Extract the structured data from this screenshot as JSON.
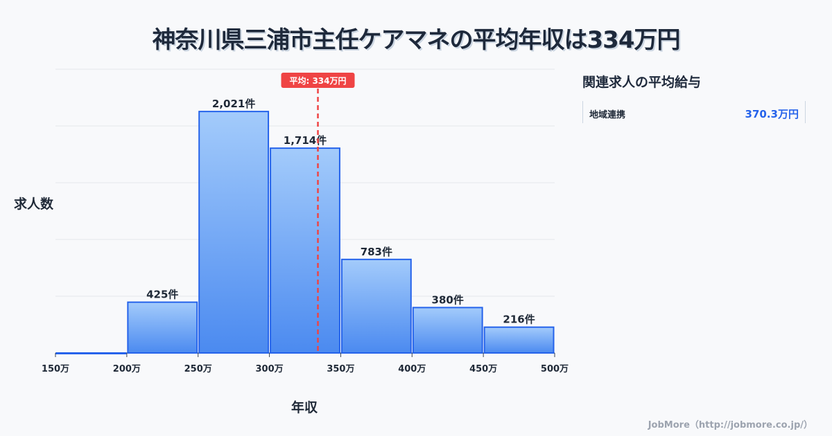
{
  "chart_data": {
    "type": "bar",
    "title": "神奈川県三浦市主任ケアマネの平均年収は334万円",
    "xlabel": "年収",
    "ylabel": "求人数",
    "x_ticks": [
      "150万",
      "200万",
      "250万",
      "300万",
      "350万",
      "400万",
      "450万",
      "500万"
    ],
    "bin_edges": [
      150,
      200,
      250,
      300,
      350,
      400,
      450,
      500
    ],
    "values": [
      0,
      425,
      2021,
      1714,
      783,
      380,
      216
    ],
    "value_labels": [
      "",
      "425件",
      "2,021件",
      "1,714件",
      "783件",
      "380件",
      "216件"
    ],
    "ylim": [
      0,
      2375
    ],
    "grid": true,
    "average": {
      "value": 334,
      "label": "平均: 334万円"
    }
  },
  "colors": {
    "bar_top": "#a3cbfb",
    "bar_bottom": "#4b8af0",
    "bar_stroke": "#2563eb",
    "avg_line": "#ef4444"
  },
  "side_panel": {
    "title": "関連求人の平均給与",
    "items": [
      {
        "name": "地域連携",
        "value": "370.3万円"
      }
    ]
  },
  "footer": "JobMore（http://jobmore.co.jp/）"
}
